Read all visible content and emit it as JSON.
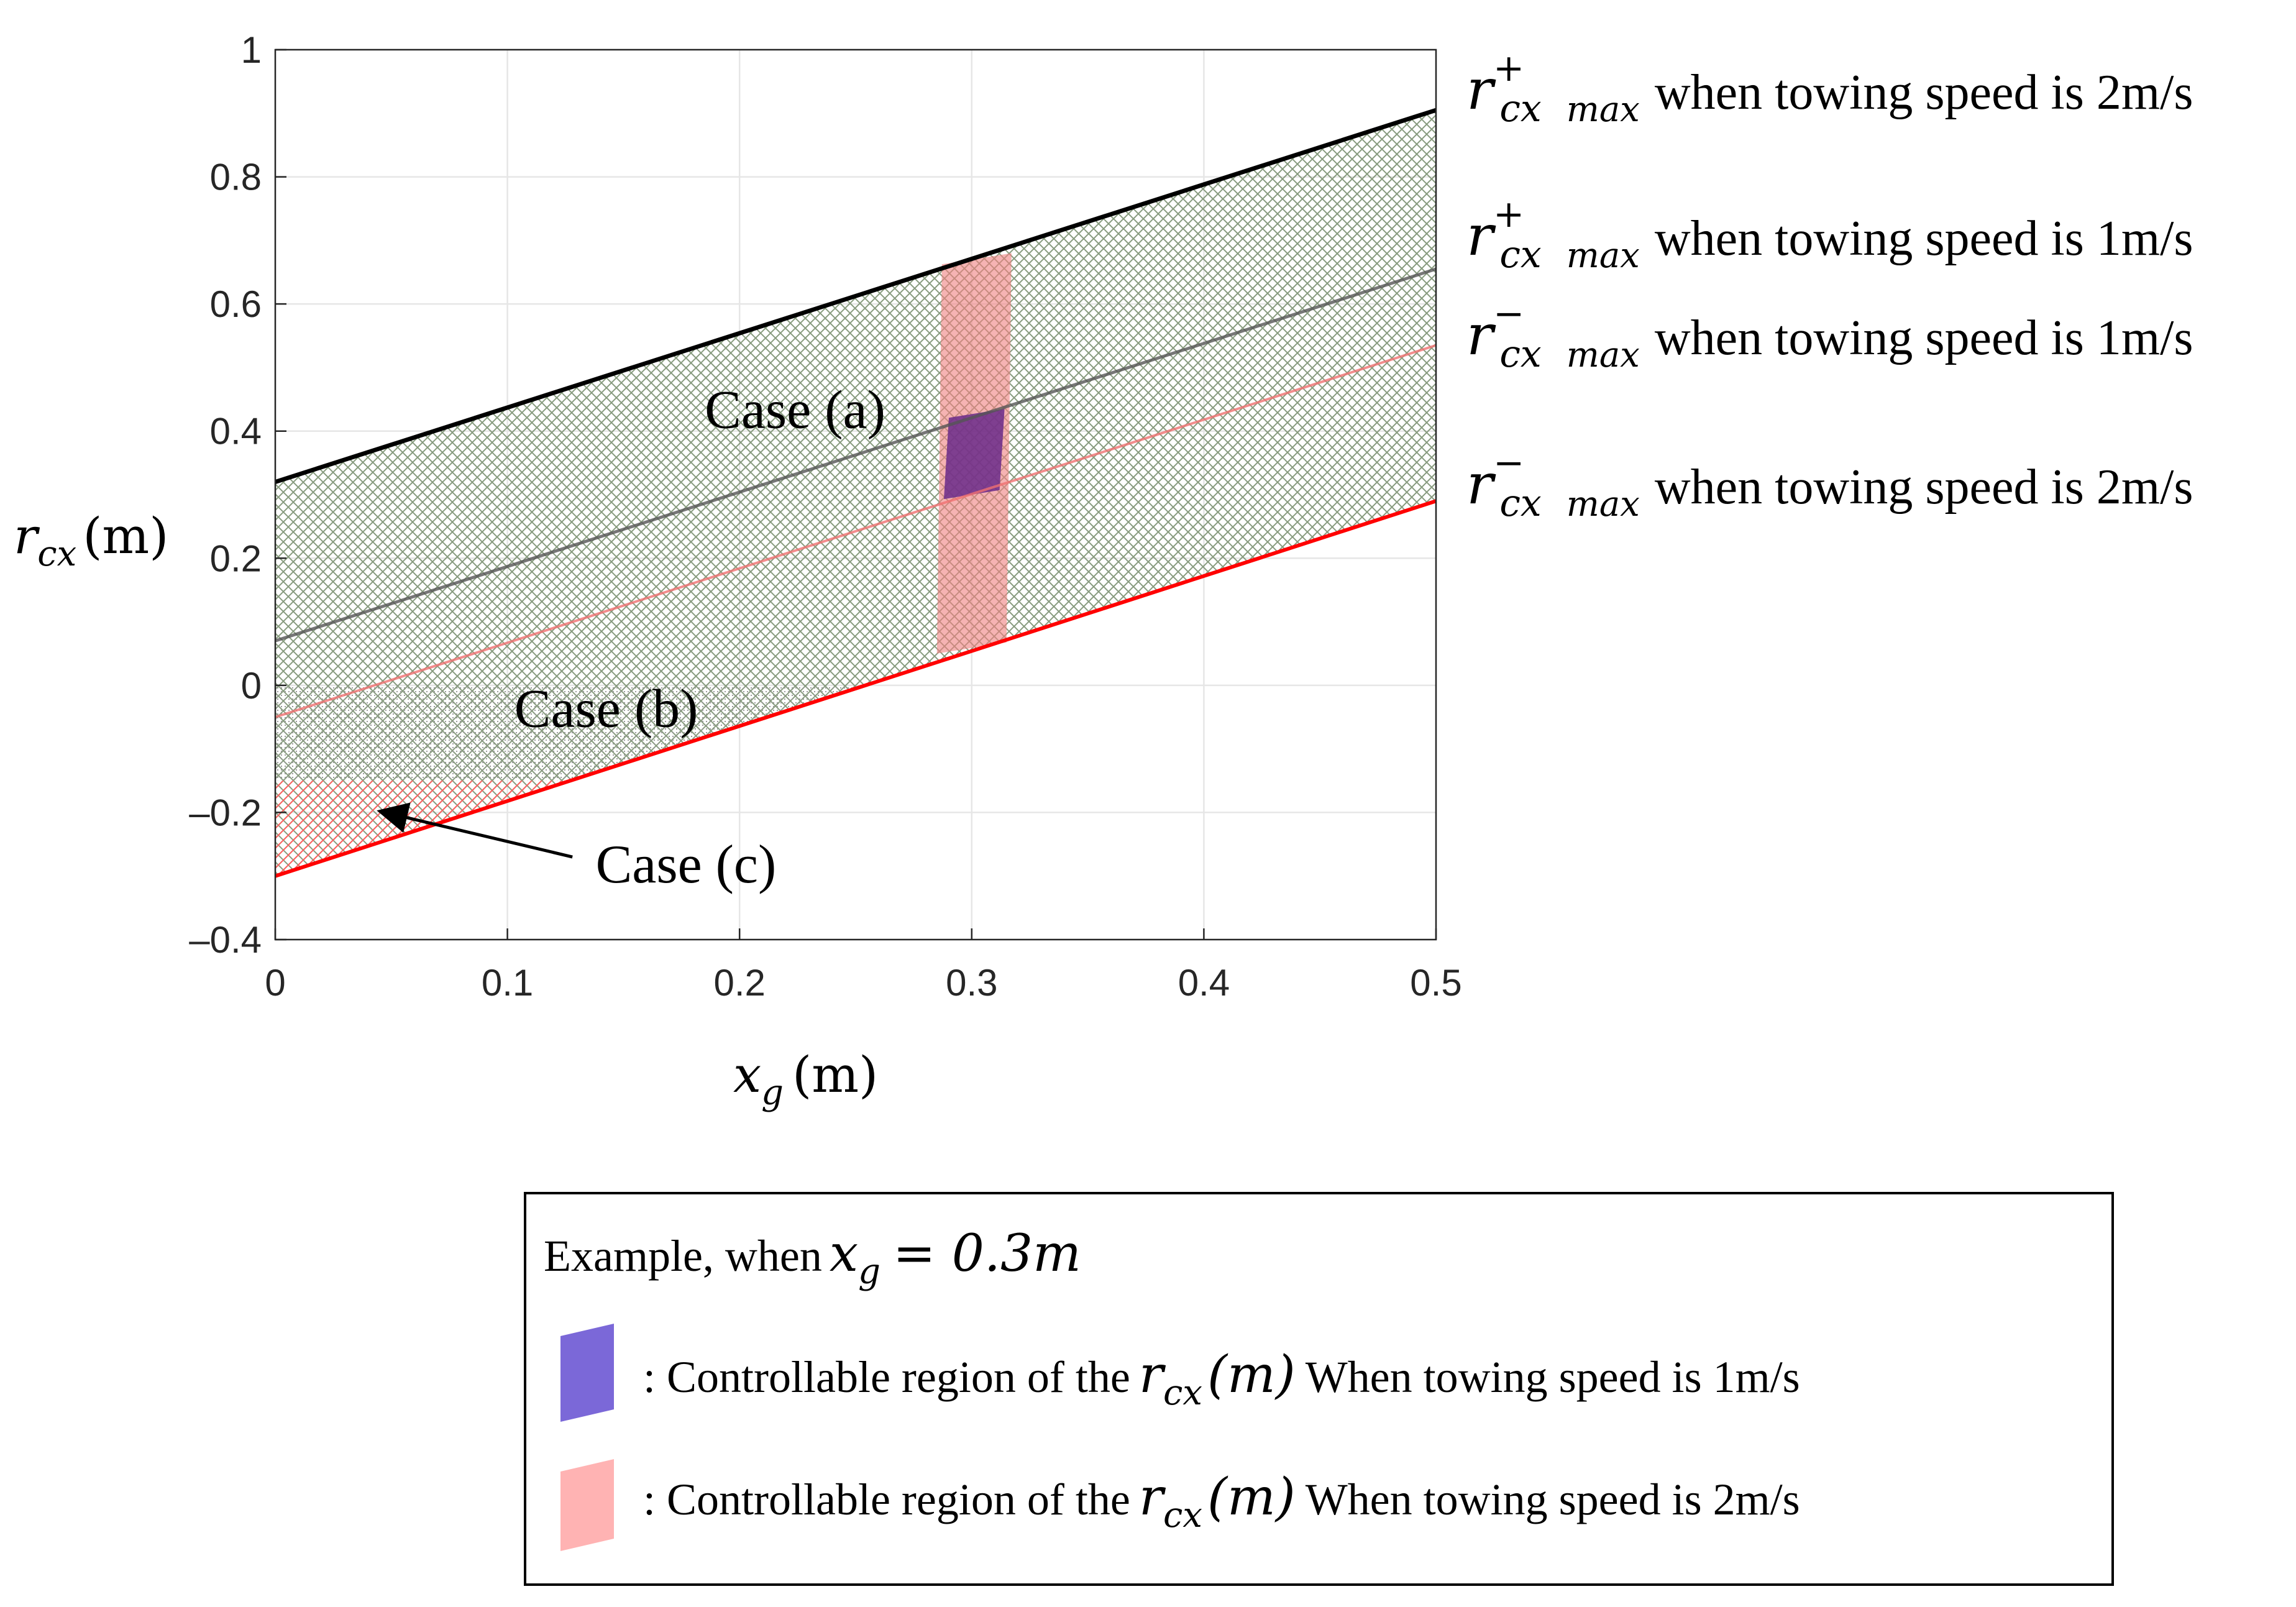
{
  "chart_data": {
    "type": "line",
    "xlabel": "x_g (m)",
    "xlabel_parts": {
      "var": "x",
      "sub": "g",
      "unit": "(m)"
    },
    "ylabel": "r_cx (m)",
    "ylabel_parts": {
      "var": "r",
      "sub": "cx",
      "unit": "(m)"
    },
    "xlim": [
      0,
      0.5
    ],
    "ylim": [
      -0.4,
      1
    ],
    "x_ticks": [
      0,
      0.1,
      0.2,
      0.3,
      0.4,
      0.5
    ],
    "x_tick_labels": [
      "0",
      "0.1",
      "0.2",
      "0.3",
      "0.4",
      "0.5"
    ],
    "y_ticks": [
      -0.4,
      -0.2,
      0,
      0.2,
      0.4,
      0.6,
      0.8,
      1
    ],
    "y_tick_labels": [
      "–0.4",
      "–0.2",
      "0",
      "0.2",
      "0.4",
      "0.6",
      "0.8",
      "1"
    ],
    "grid": true,
    "series": [
      {
        "name": "r_cx+ max when towing speed is 2m/s",
        "x": [
          0,
          0.5
        ],
        "y": [
          0.32,
          0.905
        ],
        "color": "#000000"
      },
      {
        "name": "r_cx+ max when towing speed is 1m/s",
        "x": [
          0,
          0.5
        ],
        "y": [
          0.07,
          0.655
        ],
        "color": "#555555"
      },
      {
        "name": "r_cx- max when towing speed is 1m/s",
        "x": [
          0,
          0.5
        ],
        "y": [
          -0.05,
          0.535
        ],
        "color": "#f07070"
      },
      {
        "name": "r_cx- max when towing speed is 2m/s",
        "x": [
          0,
          0.5
        ],
        "y": [
          -0.3,
          0.29
        ],
        "color": "#ff0000"
      }
    ],
    "line_labels": [
      {
        "sign": "+",
        "text": "when towing speed is 2m/s"
      },
      {
        "sign": "+",
        "text": "when towing speed is 1m/s"
      },
      {
        "sign": "−",
        "text": "when towing speed is 1m/s"
      },
      {
        "sign": "−",
        "text": "when towing speed is 2m/s"
      }
    ],
    "line_label_math": {
      "var": "r",
      "sub": "cx",
      "subscript2": "max"
    },
    "regions": [
      {
        "name": "Case (a)",
        "label": "Case (a)",
        "label_at": [
          0.185,
          0.405
        ]
      },
      {
        "name": "Case (b)",
        "label": "Case (b)",
        "label_at": [
          0.103,
          -0.065
        ]
      },
      {
        "name": "Case (c)",
        "label": "Case (c)",
        "label_at": [
          0.138,
          -0.31
        ]
      }
    ],
    "controllable_regions": [
      {
        "speed": "2m/s",
        "x_center": 0.3,
        "half_width": 0.015,
        "y_bottom": 0.05,
        "y_top": 0.68,
        "color": "#f08080"
      },
      {
        "speed": "1m/s",
        "x_center": 0.3,
        "half_width": 0.012,
        "y_bottom": 0.293,
        "y_top": 0.435,
        "color": "#6a2a8a"
      }
    ],
    "legend": {
      "placement": "bottom",
      "title_prefix": "Example, when",
      "title_math": {
        "var": "x",
        "sub": "g",
        "rest": "= 0.3m"
      },
      "entries": [
        {
          "prefix": ": Controllable region of the",
          "suffix": "When towing speed is 1m/s",
          "color": "#7b68d8"
        },
        {
          "prefix": ": Controllable region of the",
          "suffix": "When towing speed is 2m/s",
          "color": "#ffb3b3"
        }
      ]
    }
  }
}
